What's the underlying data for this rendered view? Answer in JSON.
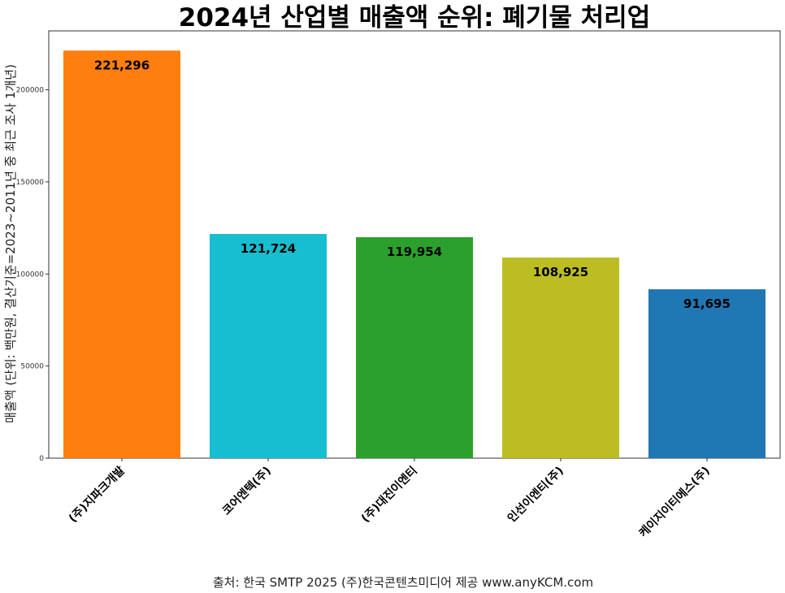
{
  "chart_data": {
    "type": "bar",
    "title": "2024년 산업별 매출액 순위: 폐기물 처리업",
    "xlabel": "",
    "ylabel": "매출액 (단위: 백만원, 결산기준=2023~2011년 중 최근 조사 1개년)",
    "categories": [
      "(주)지파크개발",
      "코어엔텍(주)",
      "(주)대진이엔티",
      "인선이엔티(주)",
      "케이지이티에스(주)"
    ],
    "values": [
      221296,
      121724,
      119954,
      108925,
      91695
    ],
    "value_labels": [
      "221,296",
      "121,724",
      "119,954",
      "108,925",
      "91,695"
    ],
    "colors": [
      "#ff7f0e",
      "#17becf",
      "#2ca02c",
      "#bcbd22",
      "#1f77b4"
    ],
    "ylim": [
      0,
      232000
    ],
    "yticks": [
      0,
      50000,
      100000,
      150000,
      200000
    ],
    "ytick_labels": [
      "0",
      "50000",
      "100000",
      "150000",
      "200000"
    ]
  },
  "source": "출처: 한국 SMTP 2025  (주)한국콘텐츠미디어 제공  www.anyKCM.com"
}
